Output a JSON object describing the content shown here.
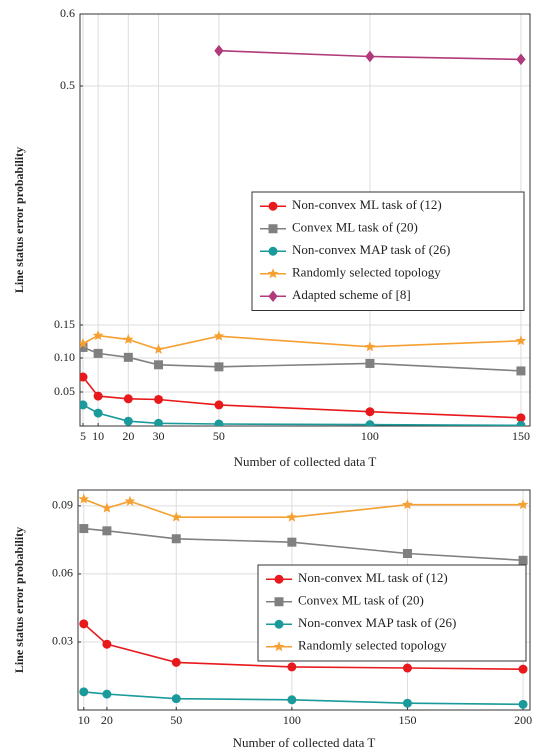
{
  "chart_data": [
    {
      "type": "line",
      "xlabel": "Number of collected data T",
      "ylabel": "Line status error probability",
      "xlim": [
        4,
        153
      ],
      "xticks": [
        5,
        10,
        20,
        30,
        50,
        100,
        150
      ],
      "ylim": [
        0,
        0.6
      ],
      "yticks": [
        0.05,
        {
          "value": 0.1,
          "label": "0.10"
        },
        0.15,
        0.5,
        0.6
      ],
      "y_scale": "broken",
      "grid": true,
      "legend": "center right",
      "series": [
        {
          "name": "Non-convex ML task of (12)",
          "color": "#e8191c",
          "marker": "circle",
          "x": [
            5,
            10,
            20,
            30,
            50,
            100,
            150
          ],
          "values": [
            0.072,
            0.044,
            0.04,
            0.039,
            0.031,
            0.021,
            0.012
          ]
        },
        {
          "name": "Convex ML task of (20)",
          "color": "#808080",
          "marker": "square",
          "x": [
            5,
            10,
            20,
            30,
            50,
            100,
            150
          ],
          "values": [
            0.116,
            0.107,
            0.101,
            0.09,
            0.087,
            0.092,
            0.081
          ]
        },
        {
          "name": "Non-convex MAP task of (26)",
          "color": "#1a9a9a",
          "marker": "circle",
          "x": [
            5,
            10,
            20,
            30,
            50,
            100,
            150
          ],
          "values": [
            0.031,
            0.019,
            0.007,
            0.004,
            0.003,
            0.002,
            0.001
          ]
        },
        {
          "name": "Randomly selected topology",
          "color": "#f5a030",
          "marker": "star",
          "x": [
            5,
            10,
            20,
            30,
            50,
            100,
            150
          ],
          "values": [
            0.122,
            0.134,
            0.128,
            0.113,
            0.133,
            0.117,
            0.126
          ]
        },
        {
          "name": "Adapted scheme of [8]",
          "color": "#b03a7a",
          "marker": "diamond",
          "x": [
            5,
            10,
            20,
            30,
            50,
            100,
            150
          ],
          "values": [
            null,
            null,
            null,
            null,
            0.549,
            0.541,
            0.537
          ]
        }
      ]
    },
    {
      "type": "line",
      "xlabel": "Number of collected data T",
      "ylabel": "Line status error probability",
      "xlim": [
        7.5,
        203
      ],
      "xticks": [
        10,
        20,
        50,
        100,
        150,
        200
      ],
      "ylim": [
        0,
        0.097
      ],
      "yticks": [
        0.03,
        0.06,
        0.09
      ],
      "grid": true,
      "legend": "center right",
      "series": [
        {
          "name": "Non-convex ML task of (12)",
          "color": "#e8191c",
          "marker": "circle",
          "x": [
            10,
            20,
            50,
            100,
            150,
            200
          ],
          "values": [
            0.038,
            0.029,
            0.021,
            0.019,
            0.0185,
            0.018
          ]
        },
        {
          "name": "Convex ML task of (20)",
          "color": "#808080",
          "marker": "square",
          "x": [
            10,
            20,
            50,
            100,
            150,
            200
          ],
          "values": [
            0.08,
            0.079,
            0.0755,
            0.074,
            0.069,
            0.066
          ]
        },
        {
          "name": "Non-convex MAP task of (26)",
          "color": "#1a9a9a",
          "marker": "circle",
          "x": [
            10,
            20,
            50,
            100,
            150,
            200
          ],
          "values": [
            0.008,
            0.007,
            0.005,
            0.0045,
            0.003,
            0.0025
          ]
        },
        {
          "name": "Randomly selected topology",
          "color": "#f5a030",
          "marker": "star",
          "x": [
            10,
            20,
            30,
            50,
            100,
            150,
            200
          ],
          "values": [
            0.093,
            0.089,
            0.092,
            0.085,
            0.085,
            0.0905,
            0.0905
          ]
        }
      ]
    }
  ]
}
